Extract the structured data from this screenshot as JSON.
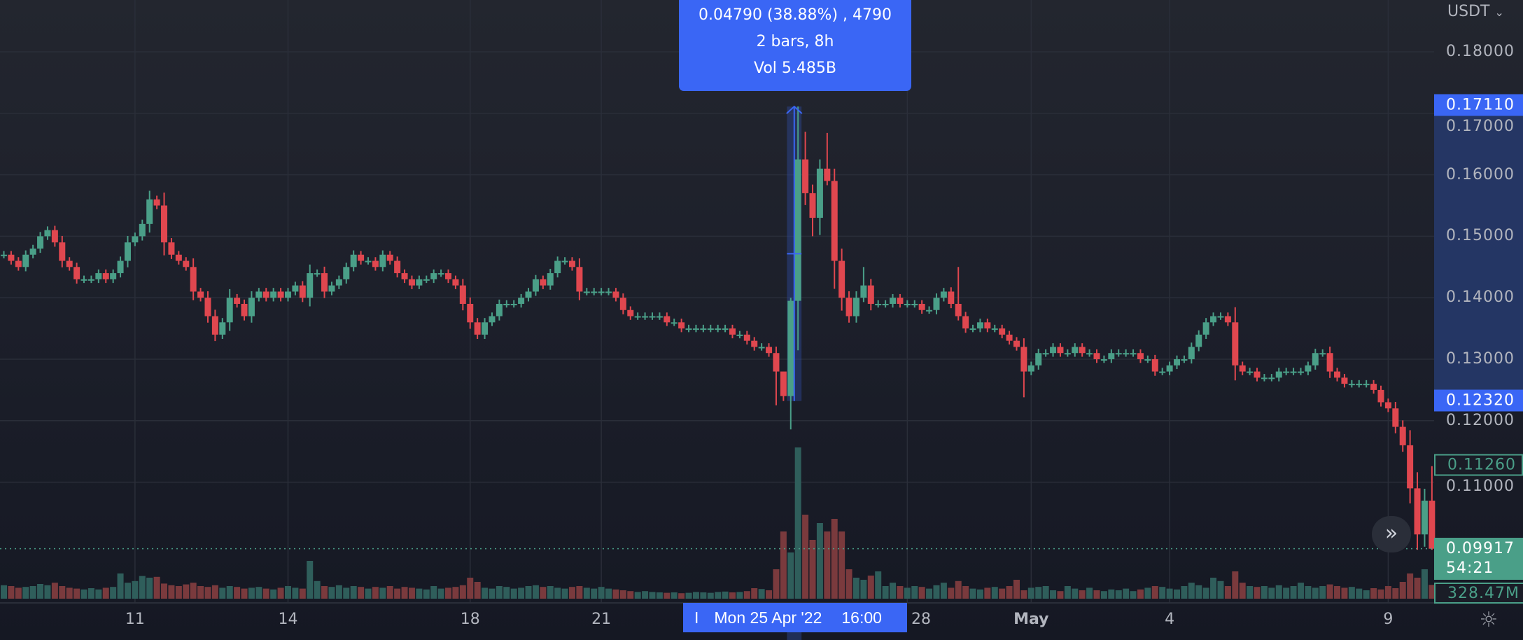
{
  "header": {
    "currency": "USDT"
  },
  "measure_tooltip": {
    "line1": "0.04790 (38.88%) , 4790",
    "line2": "2 bars, 8h",
    "line3": "Vol 5.485B"
  },
  "crosshair_date": {
    "marker": "I",
    "date": "Mon 25 Apr '22",
    "time": "16:00"
  },
  "price_tags": {
    "measure_high": "0.17110",
    "measure_low": "0.12320",
    "prev_close": "0.11260",
    "last_price": "0.09917",
    "countdown": "54:21",
    "volume": "328.47M"
  },
  "colors": {
    "up": "#4a9f88",
    "down": "#e0474f",
    "up_volume": "#2f5e5b",
    "down_volume": "#7a3a3d",
    "accent": "#3a66f5",
    "grid": "#2a2e39"
  },
  "icons": {
    "scroll_to_latest": "double-chevron-right-icon",
    "settings": "gear-icon"
  },
  "chart_data": {
    "type": "candlestick",
    "interval": "4h",
    "ylim": [
      0.095,
      0.185
    ],
    "y_ticks": [
      "0.18000",
      "0.17000",
      "0.16000",
      "0.15000",
      "0.14000",
      "0.13000",
      "0.12000",
      "0.11000"
    ],
    "x_ticks": [
      {
        "label": "11",
        "index": 18
      },
      {
        "label": "14",
        "index": 39
      },
      {
        "label": "18",
        "index": 64
      },
      {
        "label": "21",
        "index": 82
      },
      {
        "label": "28",
        "index": 124
      },
      {
        "label": "May",
        "index": 141
      },
      {
        "label": "4",
        "index": 160
      },
      {
        "label": "9",
        "index": 190
      }
    ],
    "grid": true,
    "closes": [
      0.147,
      0.146,
      0.145,
      0.147,
      0.148,
      0.15,
      0.151,
      0.149,
      0.146,
      0.145,
      0.143,
      0.143,
      0.143,
      0.144,
      0.143,
      0.144,
      0.146,
      0.149,
      0.15,
      0.152,
      0.156,
      0.155,
      0.149,
      0.147,
      0.146,
      0.145,
      0.141,
      0.14,
      0.137,
      0.134,
      0.136,
      0.14,
      0.139,
      0.137,
      0.14,
      0.141,
      0.14,
      0.141,
      0.14,
      0.141,
      0.142,
      0.14,
      0.144,
      0.144,
      0.141,
      0.142,
      0.143,
      0.145,
      0.147,
      0.146,
      0.146,
      0.145,
      0.147,
      0.146,
      0.144,
      0.143,
      0.142,
      0.143,
      0.143,
      0.144,
      0.144,
      0.143,
      0.142,
      0.139,
      0.136,
      0.134,
      0.136,
      0.137,
      0.139,
      0.139,
      0.139,
      0.14,
      0.141,
      0.143,
      0.142,
      0.144,
      0.146,
      0.146,
      0.145,
      0.141,
      0.141,
      0.141,
      0.141,
      0.141,
      0.14,
      0.138,
      0.137,
      0.137,
      0.137,
      0.137,
      0.137,
      0.136,
      0.136,
      0.135,
      0.135,
      0.135,
      0.135,
      0.135,
      0.135,
      0.135,
      0.134,
      0.134,
      0.133,
      0.132,
      0.132,
      0.131,
      0.128,
      0.124,
      0.1395,
      0.1625,
      0.157,
      0.153,
      0.161,
      0.159,
      0.146,
      0.14,
      0.137,
      0.14,
      0.142,
      0.139,
      0.139,
      0.139,
      0.14,
      0.139,
      0.139,
      0.139,
      0.138,
      0.138,
      0.14,
      0.141,
      0.139,
      0.137,
      0.135,
      0.135,
      0.136,
      0.135,
      0.135,
      0.134,
      0.133,
      0.132,
      0.128,
      0.129,
      0.131,
      0.131,
      0.132,
      0.131,
      0.131,
      0.132,
      0.131,
      0.131,
      0.13,
      0.13,
      0.131,
      0.131,
      0.131,
      0.131,
      0.13,
      0.13,
      0.128,
      0.128,
      0.129,
      0.13,
      0.13,
      0.132,
      0.134,
      0.136,
      0.137,
      0.137,
      0.136,
      0.129,
      0.128,
      0.128,
      0.127,
      0.127,
      0.127,
      0.128,
      0.128,
      0.128,
      0.128,
      0.129,
      0.131,
      0.131,
      0.128,
      0.127,
      0.126,
      0.126,
      0.126,
      0.126,
      0.125,
      0.123,
      0.122,
      0.119,
      0.116,
      0.109,
      0.1015,
      0.107,
      0.09917
    ],
    "highs": {
      "107": 0.1278,
      "108": 0.14,
      "109": 0.1711,
      "110": 0.167,
      "112": 0.1625,
      "113": 0.1668,
      "114": 0.161,
      "115": 0.148,
      "118": 0.145,
      "131": 0.145,
      "196": 0.1126
    },
    "lows": {
      "106": 0.1225,
      "107": 0.1232,
      "111": 0.15,
      "140": 0.1238,
      "194": 0.099,
      "195": 0.0995,
      "196": 0.099
    },
    "volumes_m": [
      320,
      300,
      260,
      280,
      300,
      350,
      320,
      380,
      300,
      260,
      240,
      220,
      250,
      220,
      260,
      280,
      600,
      380,
      420,
      540,
      500,
      520,
      360,
      320,
      300,
      340,
      380,
      300,
      280,
      320,
      260,
      300,
      280,
      240,
      260,
      280,
      240,
      220,
      260,
      300,
      260,
      240,
      900,
      420,
      300,
      280,
      320,
      260,
      300,
      280,
      240,
      280,
      260,
      300,
      240,
      280,
      260,
      240,
      220,
      300,
      240,
      260,
      280,
      320,
      500,
      400,
      260,
      240,
      300,
      280,
      240,
      260,
      300,
      320,
      280,
      300,
      260,
      240,
      280,
      300,
      260,
      240,
      280,
      240,
      220,
      200,
      180,
      160,
      180,
      160,
      150,
      140,
      150,
      130,
      140,
      160,
      150,
      140,
      160,
      170,
      150,
      160,
      180,
      250,
      230,
      200,
      700,
      1600,
      1100,
      3600,
      2000,
      1400,
      1800,
      1600,
      1900,
      1600,
      700,
      500,
      450,
      550,
      650,
      300,
      380,
      300,
      260,
      300,
      280,
      240,
      320,
      380,
      260,
      420,
      300,
      240,
      220,
      260,
      280,
      240,
      300,
      450,
      200,
      260,
      280,
      300,
      200,
      180,
      300,
      240,
      200,
      260,
      200,
      180,
      220,
      200,
      240,
      180,
      220,
      260,
      300,
      280,
      240,
      220,
      300,
      380,
      320,
      260,
      500,
      420,
      300,
      650,
      380,
      300,
      280,
      300,
      260,
      320,
      260,
      300,
      380,
      300,
      260,
      300,
      340,
      300,
      260,
      280,
      240,
      200,
      250,
      220,
      300,
      250,
      400,
      600,
      500,
      700,
      328.47
    ]
  }
}
